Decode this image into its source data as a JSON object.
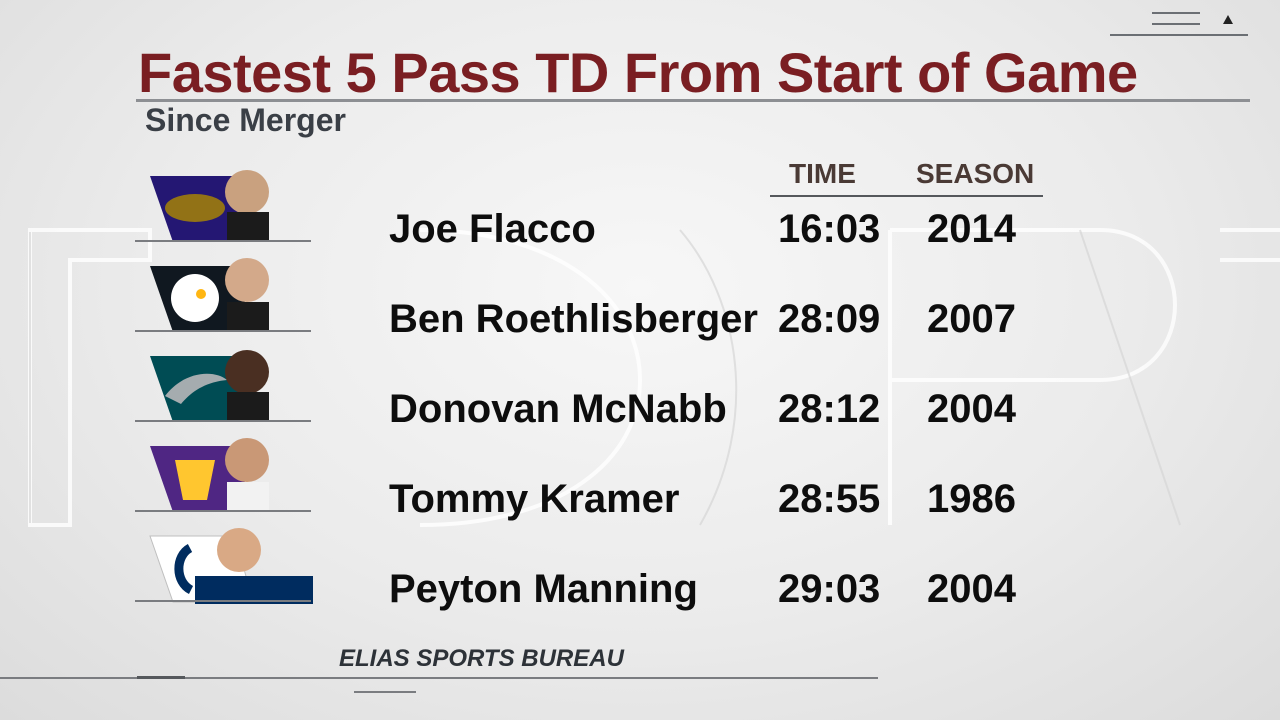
{
  "title": "Fastest 5 Pass TD From Start of Game",
  "subtitle": "Since Merger",
  "columns": {
    "time": "TIME",
    "season": "SEASON"
  },
  "rows": [
    {
      "name": "Joe Flacco",
      "time": "16:03",
      "season": "2014",
      "team": "ravens",
      "team_color": "#241773",
      "accent": "#9e7c0c"
    },
    {
      "name": "Ben Roethlisberger",
      "time": "28:09",
      "season": "2007",
      "team": "steelers",
      "team_color": "#101820",
      "accent": "#ffb612"
    },
    {
      "name": "Donovan McNabb",
      "time": "28:12",
      "season": "2004",
      "team": "eagles",
      "team_color": "#004c54",
      "accent": "#a5acaf"
    },
    {
      "name": "Tommy Kramer",
      "time": "28:55",
      "season": "1986",
      "team": "vikings",
      "team_color": "#4f2683",
      "accent": "#ffc62f"
    },
    {
      "name": "Peyton Manning",
      "time": "29:03",
      "season": "2004",
      "team": "colts",
      "team_color": "#002c5f",
      "accent": "#ffffff"
    }
  ],
  "source": "ELIAS SPORTS BUREAU",
  "colors": {
    "title": "#7a1e22",
    "subtitle": "#3a3f46",
    "text": "#0d0d0d"
  }
}
